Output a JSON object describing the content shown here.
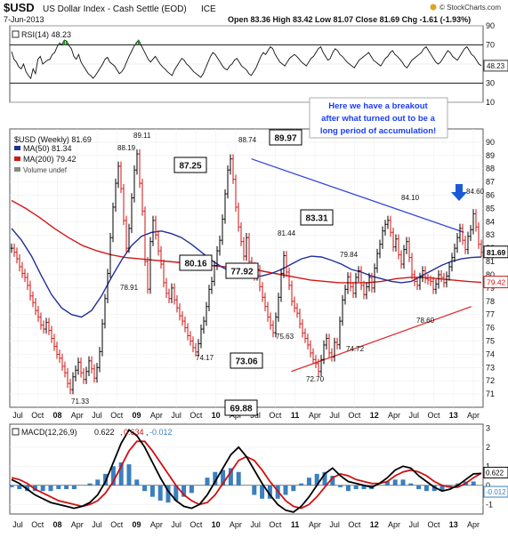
{
  "header": {
    "symbol": "$USD",
    "name": "US Dollar Index - Cash Settle (EOD)",
    "exchange": "ICE",
    "date": "7-Jun-2013",
    "ohlc": "Open 83.36  High 83.42  Low 81.07  Close 81.69  Chg -1.61 (-1.93%)",
    "credit": "© StockCharts.com",
    "credit_icon": "stockcharts-logo-icon"
  },
  "colors": {
    "price_up": "#000000",
    "price_down": "#d01010",
    "ma50": "#1f2f9c",
    "ma200": "#d01818",
    "trend_blue": "#3344dd",
    "trend_red": "#e03030",
    "rsi_highlight": "#2a8a2a",
    "annotation_text": "#1a3cff",
    "macd_line": "#000000",
    "signal_line": "#d01010",
    "histogram": "#3a7fc0"
  },
  "chart_data": [
    {
      "type": "line",
      "panel": "rsi",
      "label": "RSI(14) 48.23",
      "last_value_tag": "48.23",
      "ylim": [
        10,
        90
      ],
      "y_ticks": [
        10,
        30,
        50,
        70,
        90
      ],
      "reference_lines": [
        30,
        70
      ],
      "series": [
        {
          "name": "RSI(14)",
          "values": [
            63,
            55,
            52,
            47,
            45,
            50,
            42,
            38,
            35,
            45,
            40,
            55,
            58,
            50,
            52,
            54,
            55,
            60,
            62,
            68,
            72,
            70,
            75,
            74,
            69,
            66,
            58,
            55,
            60,
            52,
            48,
            44,
            40,
            38,
            35,
            38,
            42,
            46,
            50,
            55,
            57,
            52,
            50,
            48,
            44,
            40,
            42,
            46,
            52,
            58,
            63,
            68,
            72,
            75,
            70,
            65,
            60,
            55,
            52,
            55,
            58,
            54,
            50,
            47,
            45,
            42,
            40,
            38,
            44,
            48,
            52,
            56,
            54,
            50,
            48,
            45,
            42,
            40,
            38,
            36,
            40,
            46,
            52,
            58,
            62,
            60,
            56,
            52,
            48,
            45,
            44,
            48,
            50,
            54,
            56,
            52,
            48,
            46,
            44,
            40,
            38,
            42,
            46,
            52,
            58,
            62,
            60,
            64,
            68,
            66,
            60,
            56,
            52,
            50,
            48,
            52,
            56,
            58,
            60,
            58,
            55,
            52,
            50,
            48,
            52,
            56,
            58,
            62,
            66,
            68,
            62,
            58,
            54,
            56,
            62,
            66,
            64,
            60,
            58,
            55,
            52,
            50,
            48,
            46,
            50,
            54,
            56,
            58,
            60,
            62,
            58,
            54,
            52,
            50,
            48,
            52,
            56,
            58,
            62,
            64,
            60,
            58,
            55,
            52,
            48,
            46,
            50,
            54,
            56,
            58,
            60,
            62,
            66,
            68,
            64,
            60,
            56,
            52,
            50,
            52,
            56,
            60,
            64,
            62,
            58,
            56,
            54,
            58,
            62,
            66,
            68,
            64,
            60,
            58,
            54,
            50,
            48.23
          ]
        }
      ]
    },
    {
      "type": "line",
      "panel": "price",
      "label": "$USD (Weekly) 81.69",
      "legend": [
        "MA(50) 81.34",
        "MA(200) 79.42",
        "Volume undef"
      ],
      "last_value_tags": [
        "81.69",
        "79.42"
      ],
      "ylim": [
        70,
        91
      ],
      "y_ticks": [
        71,
        72,
        73,
        74,
        75,
        76,
        77,
        78,
        79,
        80,
        81,
        82,
        83,
        84,
        85,
        86,
        87,
        88,
        89,
        90
      ],
      "x_ticks": [
        "Jul",
        "Oct",
        "08",
        "Apr",
        "Jul",
        "Oct",
        "09",
        "Apr",
        "Jul",
        "Oct",
        "10",
        "Apr",
        "Jul",
        "Oct",
        "11",
        "Apr",
        "Jul",
        "Oct",
        "12",
        "Apr",
        "Jul",
        "Oct",
        "13",
        "Apr"
      ],
      "series": [
        {
          "name": "$USD (Weekly)",
          "values": [
            82.0,
            81.7,
            81.2,
            80.6,
            80.1,
            79.8,
            79.2,
            78.4,
            77.9,
            77.3,
            76.8,
            76.2,
            75.9,
            76.4,
            75.8,
            75.2,
            74.6,
            74.0,
            73.7,
            73.1,
            72.6,
            71.8,
            71.33,
            72.3,
            72.8,
            73.4,
            72.6,
            72.1,
            72.7,
            73.5,
            72.9,
            72.2,
            73.0,
            74.2,
            76.3,
            78.2,
            80.1,
            82.8,
            85.1,
            86.9,
            88.19,
            86.5,
            84.1,
            82.0,
            83.5,
            85.8,
            87.9,
            89.11,
            86.9,
            84.8,
            81.0,
            78.91,
            82.5,
            84.1,
            83.0,
            81.8,
            80.8,
            79.4,
            78.6,
            78.2,
            79.0,
            78.1,
            77.5,
            76.9,
            76.5,
            76.0,
            75.4,
            75.0,
            74.5,
            74.17,
            74.8,
            75.9,
            76.5,
            77.6,
            78.9,
            79.5,
            80.7,
            81.8,
            82.6,
            84.2,
            86.1,
            87.9,
            88.74,
            87.2,
            85.1,
            83.6,
            82.5,
            81.4,
            82.8,
            81.0,
            80.6,
            79.9,
            80.4,
            79.1,
            78.3,
            77.6,
            76.8,
            76.2,
            75.63,
            76.8,
            78.3,
            80.1,
            81.44,
            80.2,
            79.2,
            78.0,
            77.5,
            77.1,
            76.3,
            75.6,
            75.2,
            74.7,
            74.1,
            73.6,
            73.3,
            72.7,
            73.6,
            74.7,
            75.2,
            74.1,
            73.8,
            74.9,
            74.72,
            76.5,
            78.1,
            78.9,
            79.84,
            79.1,
            78.6,
            79.8,
            80.3,
            79.2,
            78.5,
            79.1,
            79.8,
            79.0,
            80.5,
            81.6,
            82.3,
            83.3,
            83.8,
            84.1,
            83.2,
            82.1,
            82.7,
            81.5,
            80.8,
            81.9,
            82.5,
            81.3,
            80.0,
            79.5,
            79.2,
            79.8,
            80.3,
            79.7,
            79.6,
            79.5,
            78.9,
            79.3,
            80.0,
            79.8,
            79.4,
            79.9,
            80.6,
            81.3,
            82.0,
            82.8,
            83.5,
            82.6,
            81.9,
            82.9,
            83.4,
            84.6,
            83.6,
            82.3,
            81.69
          ]
        },
        {
          "name": "MA(50)",
          "values": [
            83.5,
            82.6,
            81.4,
            79.9,
            78.5,
            77.5,
            77.0,
            76.8,
            77.3,
            78.4,
            79.8,
            81.1,
            82.2,
            82.9,
            83.2,
            83.3,
            83.1,
            82.8,
            82.3,
            81.7,
            81.1,
            80.6,
            80.2,
            80.0,
            79.9,
            79.9,
            80.1,
            80.4,
            80.8,
            81.2,
            81.4,
            81.34,
            81.1,
            80.8,
            80.4,
            80.2,
            79.9,
            79.7,
            79.5,
            79.4,
            79.5,
            79.9,
            80.3,
            80.7,
            81.0,
            81.2,
            81.3,
            81.34
          ]
        },
        {
          "name": "MA(200)",
          "values": [
            85.6,
            85.0,
            84.3,
            83.5,
            82.8,
            82.2,
            81.8,
            81.5,
            81.3,
            81.2,
            81.1,
            81.0,
            80.9,
            80.8,
            80.7,
            80.6,
            80.5,
            80.4,
            80.2,
            80.0,
            79.8,
            79.6,
            79.5,
            79.4,
            79.4,
            79.4,
            79.5,
            79.7,
            79.8,
            79.8,
            79.7,
            79.6,
            79.5,
            79.42
          ]
        }
      ],
      "price_labels": [
        "89.11",
        "88.19",
        "88.74",
        "81.44",
        "78.91",
        "74.17",
        "75.63",
        "79.84",
        "74.72",
        "72.70",
        "71.33",
        "84.10",
        "78.60",
        "84.60"
      ],
      "boxed_levels": [
        "89.97",
        "87.25",
        "83.31",
        "80.16",
        "77.92",
        "73.06",
        "69.88"
      ],
      "annotation": [
        "Here we have a breakout",
        "after what turned out to be a",
        "long period of accumulation!"
      ],
      "arrow_icon": "down-arrow-icon"
    },
    {
      "type": "line",
      "panel": "macd",
      "label_main": "MACD(12,26,9)",
      "label_macd": "0.622",
      "label_signal": "0.634",
      "label_hist": "-0.012",
      "last_value_tags": [
        "0.622",
        "-0.012"
      ],
      "ylim": [
        -1.5,
        3.2
      ],
      "y_ticks": [
        -1,
        0,
        1,
        2,
        3
      ],
      "x_ticks": [
        "Jul",
        "Oct",
        "08",
        "Apr",
        "Jul",
        "Oct",
        "09",
        "Apr",
        "Jul",
        "Oct",
        "10",
        "Apr",
        "Jul",
        "Oct",
        "11",
        "Apr",
        "Jul",
        "Oct",
        "12",
        "Apr",
        "Jul",
        "Oct",
        "13",
        "Apr"
      ],
      "series": [
        {
          "name": "MACD",
          "values": [
            0.3,
            0.1,
            -0.2,
            -0.5,
            -0.7,
            -0.9,
            -1.0,
            -1.1,
            -1.2,
            -1.1,
            -0.9,
            -0.5,
            0.2,
            1.2,
            2.2,
            2.9,
            2.6,
            2.0,
            1.2,
            0.4,
            -0.3,
            -0.8,
            -1.1,
            -1.2,
            -1.0,
            -0.5,
            0.2,
            0.9,
            1.6,
            2.0,
            1.5,
            0.8,
            0.1,
            -0.5,
            -1.0,
            -1.3,
            -1.4,
            -1.1,
            -0.6,
            0.0,
            0.6,
            0.9,
            0.5,
            0.2,
            0.1,
            0.0,
            -0.1,
            0.1,
            0.4,
            0.8,
            1.0,
            0.9,
            0.5,
            0.2,
            -0.1,
            -0.3,
            -0.2,
            0.0,
            0.3,
            0.6,
            0.622
          ]
        },
        {
          "name": "Signal",
          "values": [
            0.4,
            0.3,
            0.1,
            -0.2,
            -0.4,
            -0.6,
            -0.8,
            -0.9,
            -1.0,
            -1.1,
            -1.0,
            -0.8,
            -0.4,
            0.2,
            1.0,
            1.8,
            2.3,
            2.3,
            1.8,
            1.2,
            0.6,
            0.0,
            -0.5,
            -0.8,
            -1.0,
            -0.9,
            -0.5,
            0.1,
            0.7,
            1.3,
            1.5,
            1.3,
            0.8,
            0.2,
            -0.3,
            -0.8,
            -1.1,
            -1.2,
            -1.0,
            -0.6,
            -0.1,
            0.4,
            0.6,
            0.5,
            0.3,
            0.2,
            0.1,
            0.1,
            0.2,
            0.5,
            0.7,
            0.8,
            0.7,
            0.5,
            0.2,
            0.0,
            -0.1,
            -0.1,
            0.1,
            0.4,
            0.634
          ]
        }
      ]
    }
  ]
}
